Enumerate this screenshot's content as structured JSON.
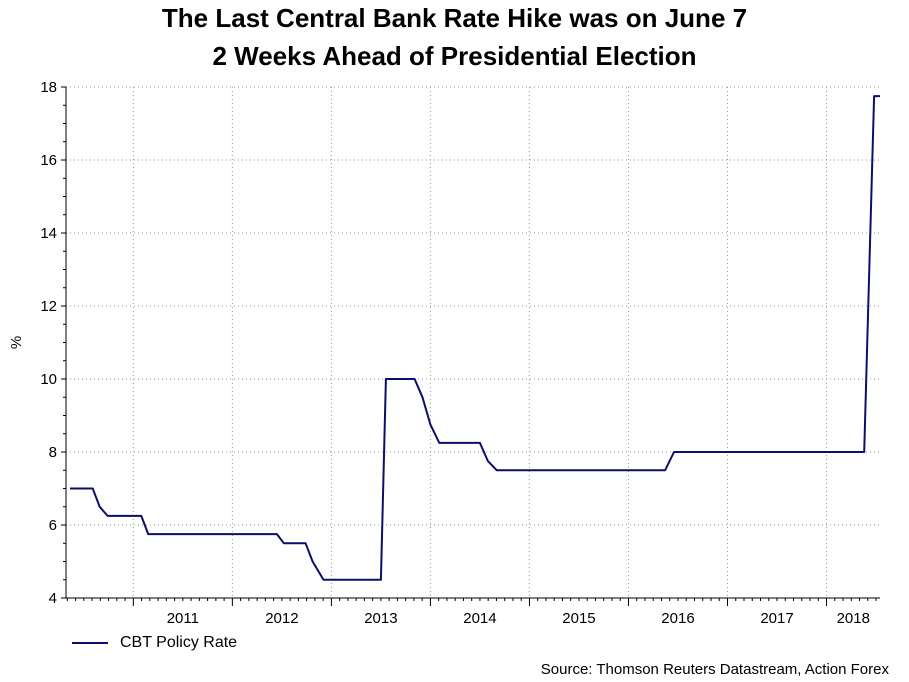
{
  "chart_data": {
    "type": "line",
    "title": [
      "The Last Central Bank Rate Hike was on June 7",
      "2 Weeks Ahead of Presidential Election"
    ],
    "ylabel": "%",
    "ylim": [
      4,
      18
    ],
    "yticks": [
      4,
      6,
      8,
      10,
      12,
      14,
      16,
      18
    ],
    "xlim": [
      2010.32,
      2018.54
    ],
    "xtick_labels": [
      "2011",
      "2012",
      "2013",
      "2014",
      "2015",
      "2016",
      "2017",
      "2018"
    ],
    "grid": true,
    "legend_position": "bottom-left",
    "series": [
      {
        "name": "CBT Policy Rate",
        "color": "#0d0d6b",
        "x": [
          2010.36,
          2010.59,
          2010.66,
          2010.74,
          2011.08,
          2011.15,
          2011.27,
          2011.7,
          2012.45,
          2012.52,
          2012.74,
          2012.81,
          2012.92,
          2013.44,
          2013.5,
          2013.55,
          2013.84,
          2013.92,
          2014.0,
          2014.09,
          2014.5,
          2014.58,
          2014.67,
          2015.0,
          2016.37,
          2016.46,
          2017.0,
          2018.38,
          2018.48,
          2018.54
        ],
        "y": [
          7,
          7,
          6.5,
          6.25,
          6.25,
          5.75,
          5.75,
          5.75,
          5.75,
          5.5,
          5.5,
          5.0,
          4.5,
          4.5,
          4.5,
          10,
          10,
          9.5,
          8.75,
          8.25,
          8.25,
          7.75,
          7.5,
          7.5,
          7.5,
          8.0,
          8.0,
          8.0,
          17.75,
          17.75
        ]
      }
    ],
    "source": "Source: Thomson Reuters Datastream, Action Forex"
  }
}
